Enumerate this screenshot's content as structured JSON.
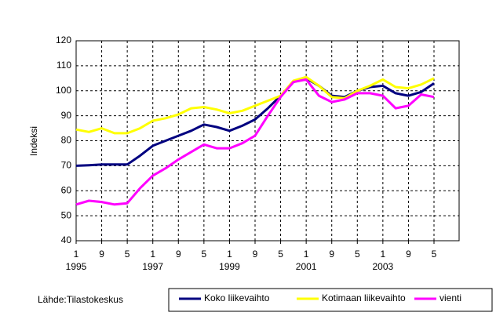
{
  "chart_data": {
    "type": "line",
    "y_label": "Indeksi",
    "source": "Lähde:Tilastokeskus",
    "categories": [
      "1",
      null,
      "9",
      null,
      "5",
      null,
      "1",
      null,
      "9",
      null,
      "5",
      null,
      "1",
      null,
      "9",
      null,
      "5",
      null,
      "1",
      null,
      "9",
      null,
      "5",
      null,
      "1",
      null,
      "9",
      null,
      "5"
    ],
    "years": [
      "1995",
      null,
      null,
      null,
      null,
      null,
      "1997",
      null,
      null,
      null,
      null,
      null,
      "1999",
      null,
      null,
      null,
      null,
      null,
      "2001",
      null,
      null,
      null,
      null,
      null,
      "2003",
      null,
      null,
      null,
      null
    ],
    "series": [
      {
        "name": "Koko liikevaihto",
        "color": "#000080",
        "values": [
          70,
          70.2,
          70.5,
          70.5,
          70.5,
          74,
          78,
          80,
          82,
          84,
          86.5,
          85.5,
          84,
          86,
          88.5,
          93,
          98,
          103.5,
          105,
          102,
          98,
          97.5,
          100,
          101.5,
          102,
          99,
          98,
          99.5,
          103
        ]
      },
      {
        "name": "Kotimaan liikevaihto",
        "color": "#ffff00",
        "values": [
          84.5,
          83.5,
          85,
          83,
          83,
          85,
          88,
          89,
          90.5,
          93,
          93.5,
          92.5,
          91,
          92,
          94,
          96,
          98,
          104,
          105.5,
          102,
          97.5,
          97,
          100,
          102,
          104.5,
          101.5,
          101,
          102.5,
          105
        ]
      },
      {
        "name": "vienti",
        "color": "#ff00ff",
        "values": [
          54.5,
          56,
          55.5,
          54.5,
          55,
          61,
          66,
          69,
          72.5,
          75.5,
          78.5,
          77,
          77,
          79,
          82,
          90,
          97.5,
          103.5,
          104.5,
          98,
          95.5,
          96.5,
          99,
          99,
          98,
          93,
          94,
          98.5,
          97.5
        ]
      }
    ],
    "ylim": [
      40,
      120
    ],
    "yticks": [
      40,
      50,
      60,
      70,
      80,
      90,
      100,
      110,
      120
    ],
    "grid": true
  }
}
